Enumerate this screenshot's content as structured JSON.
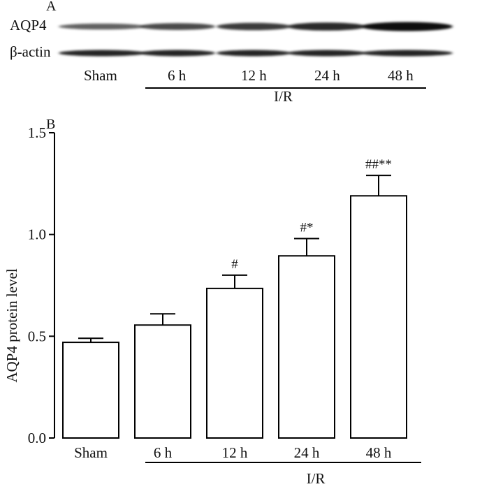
{
  "panel_a": {
    "label": "A",
    "rows": [
      "AQP4",
      "β-actin"
    ],
    "lanes": [
      "Sham",
      "6 h",
      "12 h",
      "24 h",
      "48 h"
    ],
    "group_label": "I/R",
    "aqp4_intensity": [
      0.45,
      0.6,
      0.7,
      0.82,
      1.0
    ],
    "actin_intensity": [
      0.85,
      0.85,
      0.85,
      0.85,
      0.85
    ]
  },
  "chart_data": {
    "type": "bar",
    "panel_label": "B",
    "categories": [
      "Sham",
      "6 h",
      "12 h",
      "24 h",
      "48 h"
    ],
    "values": [
      0.47,
      0.555,
      0.735,
      0.895,
      1.19
    ],
    "errors": [
      0.02,
      0.055,
      0.065,
      0.085,
      0.1
    ],
    "annotations": [
      "",
      "",
      "#",
      "#*",
      "##**"
    ],
    "ylabel": "AQP4 protein level",
    "xlabel": "",
    "group_label": "I/R",
    "ylim": [
      0,
      1.5
    ],
    "yticks": [
      0.0,
      0.5,
      1.0,
      1.5
    ],
    "ytick_labels": [
      "0.0",
      "0.5",
      "1.0",
      "1.5"
    ],
    "grid": false,
    "colors": {
      "bar_fill": "#ffffff",
      "bar_stroke": "#000000"
    }
  }
}
